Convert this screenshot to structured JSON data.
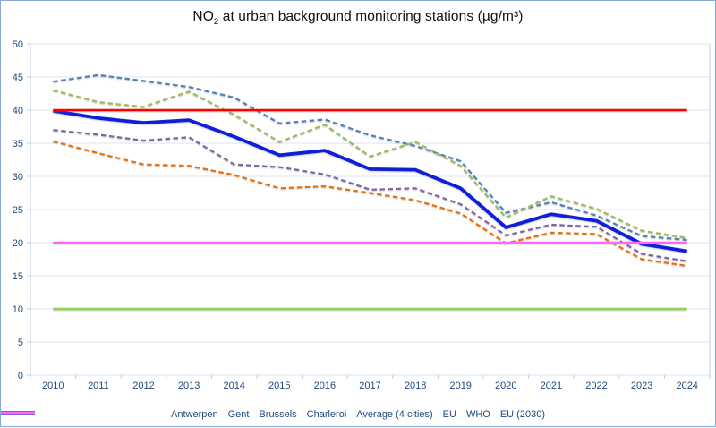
{
  "title": {
    "prefix": "NO",
    "subscript": "2",
    "suffix": " at urban background monitoring stations (µg/m³)"
  },
  "colors": {
    "antwerpen": "#4f81bd",
    "gent": "#e8700a",
    "brussels": "#9bbb59",
    "charleroi": "#8064a2",
    "average": "#0f1fd8",
    "eu": "#ff0000",
    "who": "#92d050",
    "eu_2030": "#ff66ff",
    "axis_text": "#1f497d",
    "gridline": "#dae6f2",
    "border": "#85aad4"
  },
  "chart_data": {
    "type": "line",
    "categories": [
      "2010",
      "2011",
      "2012",
      "2013",
      "2014",
      "2015",
      "2016",
      "2017",
      "2018",
      "2019",
      "2020",
      "2021",
      "2022",
      "2023",
      "2024"
    ],
    "yticks": [
      0,
      5,
      10,
      15,
      20,
      25,
      30,
      35,
      40,
      45,
      50
    ],
    "ylim": [
      0,
      50
    ],
    "grid": true,
    "legend_position": "bottom",
    "series": [
      {
        "name": "Antwerpen",
        "color": "#4f81bd",
        "dash": true,
        "width": 2.2,
        "values": [
          44.3,
          45.3,
          44.4,
          43.5,
          41.9,
          38.0,
          38.6,
          36.2,
          34.6,
          32.3,
          24.5,
          26.1,
          24.1,
          21.0,
          20.4
        ]
      },
      {
        "name": "Gent",
        "color": "#e8700a",
        "dash": true,
        "width": 2.2,
        "values": [
          35.3,
          33.5,
          31.8,
          31.6,
          30.2,
          28.2,
          28.5,
          27.5,
          26.4,
          24.4,
          19.9,
          21.5,
          21.3,
          17.5,
          16.5
        ]
      },
      {
        "name": "Brussels",
        "color": "#9bbb59",
        "dash": true,
        "width": 2.2,
        "values": [
          43.0,
          41.2,
          40.5,
          42.8,
          39.3,
          35.2,
          37.8,
          33.0,
          35.2,
          31.6,
          23.8,
          27.0,
          25.1,
          21.8,
          20.7
        ]
      },
      {
        "name": "Charleroi",
        "color": "#8064a2",
        "dash": true,
        "width": 2.2,
        "values": [
          37.0,
          36.3,
          35.4,
          35.9,
          31.8,
          31.4,
          30.3,
          28.0,
          28.2,
          25.8,
          21.1,
          22.7,
          22.4,
          18.3,
          17.2
        ]
      },
      {
        "name": "Average (4 cities)",
        "color": "#0f1fd8",
        "dash": false,
        "width": 3.8,
        "values": [
          39.9,
          38.8,
          38.1,
          38.5,
          36.0,
          33.2,
          33.9,
          31.1,
          31.0,
          28.2,
          22.3,
          24.3,
          23.3,
          19.8,
          18.7
        ]
      },
      {
        "name": "EU",
        "color": "#ff0000",
        "dash": false,
        "width": 2.6,
        "values": [
          40,
          40,
          40,
          40,
          40,
          40,
          40,
          40,
          40,
          40,
          40,
          40,
          40,
          40,
          40
        ]
      },
      {
        "name": "WHO",
        "color": "#92d050",
        "dash": false,
        "width": 2.6,
        "values": [
          10,
          10,
          10,
          10,
          10,
          10,
          10,
          10,
          10,
          10,
          10,
          10,
          10,
          10,
          10
        ]
      },
      {
        "name": "EU (2030)",
        "color": "#ff66ff",
        "dash": false,
        "width": 2.6,
        "values": [
          20,
          20,
          20,
          20,
          20,
          20,
          20,
          20,
          20,
          20,
          20,
          20,
          20,
          20,
          20
        ]
      }
    ]
  }
}
